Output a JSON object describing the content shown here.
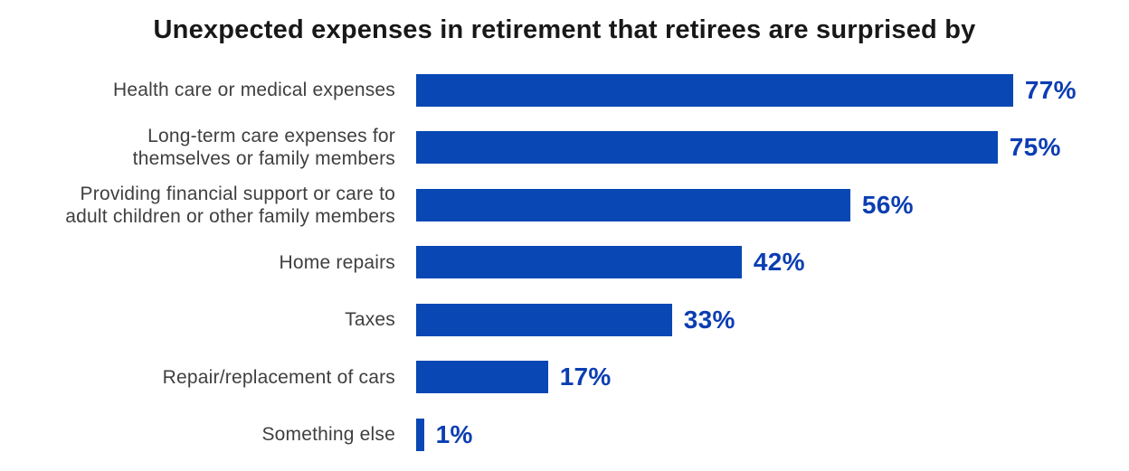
{
  "title": "Unexpected expenses in retirement that retirees are surprised by",
  "colors": {
    "background": "#ffffff",
    "title": "#181818",
    "category_label": "#3f3f3f",
    "bar": "#0847b4",
    "value_label": "#0c3eb2"
  },
  "chart_data": {
    "type": "bar",
    "orientation": "horizontal",
    "title": "Unexpected expenses in retirement that retirees are surprised by",
    "categories": [
      "Health care or medical expenses",
      "Long-term care expenses for\nthemselves or family members",
      "Providing financial support or care to\nadult children or other family members",
      "Home repairs",
      "Taxes",
      "Repair/replacement of cars",
      "Something else"
    ],
    "values": [
      77,
      75,
      56,
      42,
      33,
      17,
      1
    ],
    "value_labels": [
      "77%",
      "75%",
      "56%",
      "42%",
      "33%",
      "17%",
      "1%"
    ],
    "value_suffix": "%",
    "xlabel": "",
    "ylabel": "",
    "xlim": [
      0,
      100
    ],
    "grid": false,
    "axis_visible": false,
    "legend": "none",
    "value_label_position": "outside-end"
  }
}
